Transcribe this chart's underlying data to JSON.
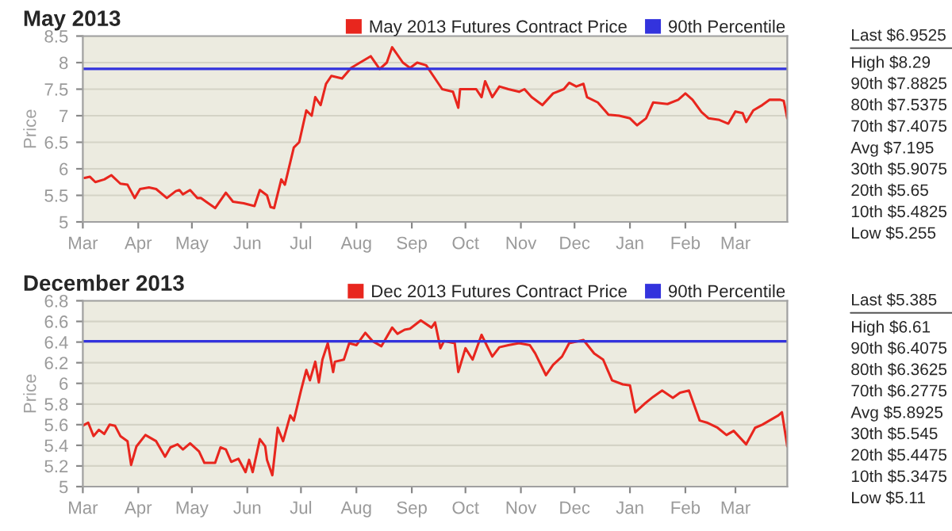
{
  "chart_data": [
    {
      "type": "line",
      "title": "May 2013",
      "ylabel": "Price",
      "grid": "y",
      "legend": "top right",
      "xlim": [
        "2012-03-01",
        "2013-03-30"
      ],
      "xticks": [
        {
          "value": "2012-03-01",
          "label": "Mar"
        },
        {
          "value": "2012-04-01",
          "label": "Apr"
        },
        {
          "value": "2012-05-01",
          "label": "May"
        },
        {
          "value": "2012-06-01",
          "label": "Jun"
        },
        {
          "value": "2012-07-01",
          "label": "Jul"
        },
        {
          "value": "2012-08-01",
          "label": "Aug"
        },
        {
          "value": "2012-09-01",
          "label": "Sep"
        },
        {
          "value": "2012-10-01",
          "label": "Oct"
        },
        {
          "value": "2012-11-01",
          "label": "Nov"
        },
        {
          "value": "2012-12-01",
          "label": "Dec"
        },
        {
          "value": "2013-01-01",
          "label": "Jan"
        },
        {
          "value": "2013-02-01",
          "label": "Feb"
        },
        {
          "value": "2013-03-01",
          "label": "Mar"
        }
      ],
      "ylim": [
        5,
        8.5
      ],
      "yticks": [
        5,
        5.5,
        6,
        6.5,
        7,
        7.5,
        8,
        8.5
      ],
      "series": [
        {
          "name": "May 2013 Futures Contract Price",
          "color": "#e8261e",
          "x": [
            "2012-03-02",
            "2012-03-05",
            "2012-03-08",
            "2012-03-13",
            "2012-03-17",
            "2012-03-22",
            "2012-03-26",
            "2012-03-30",
            "2012-04-02",
            "2012-04-07",
            "2012-04-11",
            "2012-04-17",
            "2012-04-22",
            "2012-04-24",
            "2012-04-26",
            "2012-04-30",
            "2012-05-04",
            "2012-05-06",
            "2012-05-14",
            "2012-05-20",
            "2012-05-24",
            "2012-05-30",
            "2012-06-05",
            "2012-06-08",
            "2012-06-12",
            "2012-06-14",
            "2012-06-16",
            "2012-06-20",
            "2012-06-22",
            "2012-06-27",
            "2012-06-30",
            "2012-07-04",
            "2012-07-07",
            "2012-07-09",
            "2012-07-12",
            "2012-07-15",
            "2012-07-18",
            "2012-07-24",
            "2012-07-29",
            "2012-08-03",
            "2012-08-09",
            "2012-08-14",
            "2012-08-18",
            "2012-08-21",
            "2012-08-27",
            "2012-08-31",
            "2012-09-04",
            "2012-09-09",
            "2012-09-13",
            "2012-09-18",
            "2012-09-24",
            "2012-09-27",
            "2012-09-28",
            "2012-10-07",
            "2012-10-10",
            "2012-10-12",
            "2012-10-16",
            "2012-10-20",
            "2012-10-25",
            "2012-10-31",
            "2012-11-03",
            "2012-11-07",
            "2012-11-13",
            "2012-11-19",
            "2012-11-25",
            "2012-11-28",
            "2012-12-02",
            "2012-12-06",
            "2012-12-08",
            "2012-12-14",
            "2012-12-20",
            "2012-12-26",
            "2013-01-01",
            "2013-01-05",
            "2013-01-10",
            "2013-01-14",
            "2013-01-22",
            "2013-01-28",
            "2013-02-01",
            "2013-02-05",
            "2013-02-10",
            "2013-02-14",
            "2013-02-20",
            "2013-02-25",
            "2013-03-01",
            "2013-03-05",
            "2013-03-07",
            "2013-03-11",
            "2013-03-16",
            "2013-03-20",
            "2013-03-26",
            "2013-03-28",
            "2013-03-30"
          ],
          "values": [
            5.83,
            5.85,
            5.75,
            5.8,
            5.88,
            5.72,
            5.7,
            5.45,
            5.62,
            5.65,
            5.62,
            5.45,
            5.58,
            5.6,
            5.52,
            5.6,
            5.45,
            5.45,
            5.26,
            5.55,
            5.38,
            5.35,
            5.3,
            5.6,
            5.5,
            5.28,
            5.26,
            5.8,
            5.7,
            6.4,
            6.5,
            7.1,
            7.0,
            7.35,
            7.2,
            7.6,
            7.75,
            7.7,
            7.9,
            8.0,
            8.12,
            7.88,
            8.0,
            8.29,
            8.0,
            7.9,
            8.0,
            7.95,
            7.75,
            7.5,
            7.45,
            7.15,
            7.5,
            7.5,
            7.35,
            7.65,
            7.35,
            7.55,
            7.5,
            7.45,
            7.5,
            7.35,
            7.2,
            7.42,
            7.5,
            7.62,
            7.55,
            7.6,
            7.35,
            7.25,
            7.02,
            7.0,
            6.95,
            6.82,
            6.95,
            7.25,
            7.22,
            7.3,
            7.42,
            7.3,
            7.07,
            6.95,
            6.92,
            6.85,
            7.08,
            7.05,
            6.88,
            7.1,
            7.2,
            7.3,
            7.3,
            7.28,
            6.95
          ]
        }
      ],
      "ref_lines": [
        {
          "axis": "y",
          "value": 7.8825,
          "label": "90th Percentile",
          "color": "#3333dd"
        }
      ],
      "annotations": [
        "Last $6.9525",
        "High $8.29",
        "90th $7.8825",
        "80th $7.5375",
        "70th $7.4075",
        "Avg $7.195",
        "30th $5.9075",
        "20th $5.65",
        "10th $5.4825",
        "Low $5.255"
      ]
    },
    {
      "type": "line",
      "title": "December 2013",
      "ylabel": "Price",
      "grid": "y",
      "legend": "top right",
      "xlim": [
        "2012-03-01",
        "2013-03-30"
      ],
      "xticks": [
        {
          "value": "2012-03-01",
          "label": "Mar"
        },
        {
          "value": "2012-04-01",
          "label": "Apr"
        },
        {
          "value": "2012-05-01",
          "label": "May"
        },
        {
          "value": "2012-06-01",
          "label": "Jun"
        },
        {
          "value": "2012-07-01",
          "label": "Jul"
        },
        {
          "value": "2012-08-01",
          "label": "Aug"
        },
        {
          "value": "2012-09-01",
          "label": "Sep"
        },
        {
          "value": "2012-10-01",
          "label": "Oct"
        },
        {
          "value": "2012-11-01",
          "label": "Nov"
        },
        {
          "value": "2012-12-01",
          "label": "Dec"
        },
        {
          "value": "2013-01-01",
          "label": "Jan"
        },
        {
          "value": "2013-02-01",
          "label": "Feb"
        },
        {
          "value": "2013-03-01",
          "label": "Mar"
        }
      ],
      "ylim": [
        5,
        6.8
      ],
      "yticks": [
        5,
        5.2,
        5.4,
        5.6,
        5.8,
        6,
        6.2,
        6.4,
        6.6,
        6.8
      ],
      "series": [
        {
          "name": "Dec 2013 Futures Contract Price",
          "color": "#e8261e",
          "x": [
            "2012-03-01",
            "2012-03-04",
            "2012-03-07",
            "2012-03-10",
            "2012-03-13",
            "2012-03-16",
            "2012-03-19",
            "2012-03-22",
            "2012-03-26",
            "2012-03-28",
            "2012-03-31",
            "2012-04-05",
            "2012-04-11",
            "2012-04-16",
            "2012-04-19",
            "2012-04-23",
            "2012-04-26",
            "2012-04-30",
            "2012-05-05",
            "2012-05-08",
            "2012-05-14",
            "2012-05-17",
            "2012-05-20",
            "2012-05-23",
            "2012-05-27",
            "2012-05-31",
            "2012-06-02",
            "2012-06-04",
            "2012-06-08",
            "2012-06-11",
            "2012-06-12",
            "2012-06-15",
            "2012-06-18",
            "2012-06-21",
            "2012-06-25",
            "2012-06-27",
            "2012-07-01",
            "2012-07-04",
            "2012-07-06",
            "2012-07-09",
            "2012-07-11",
            "2012-07-13",
            "2012-07-16",
            "2012-07-19",
            "2012-07-20",
            "2012-07-25",
            "2012-07-28",
            "2012-08-01",
            "2012-08-06",
            "2012-08-10",
            "2012-08-15",
            "2012-08-21",
            "2012-08-24",
            "2012-08-28",
            "2012-08-31",
            "2012-09-06",
            "2012-09-12",
            "2012-09-14",
            "2012-09-17",
            "2012-09-19",
            "2012-09-25",
            "2012-09-27",
            "2012-10-01",
            "2012-10-05",
            "2012-10-10",
            "2012-10-16",
            "2012-10-20",
            "2012-10-25",
            "2012-10-31",
            "2012-11-06",
            "2012-11-09",
            "2012-11-15",
            "2012-11-19",
            "2012-11-24",
            "2012-11-28",
            "2012-12-06",
            "2012-12-12",
            "2012-12-17",
            "2012-12-22",
            "2012-12-28",
            "2013-01-01",
            "2013-01-04",
            "2013-01-09",
            "2013-01-14",
            "2013-01-19",
            "2013-01-25",
            "2013-01-29",
            "2013-02-03",
            "2013-02-09",
            "2013-02-13",
            "2013-02-19",
            "2013-02-24",
            "2013-02-28",
            "2013-03-07",
            "2013-03-12",
            "2013-03-16",
            "2013-03-20",
            "2013-03-25",
            "2013-03-27",
            "2013-03-30"
          ],
          "values": [
            5.59,
            5.62,
            5.49,
            5.55,
            5.51,
            5.6,
            5.59,
            5.49,
            5.44,
            5.21,
            5.39,
            5.5,
            5.44,
            5.29,
            5.38,
            5.41,
            5.36,
            5.42,
            5.34,
            5.23,
            5.23,
            5.38,
            5.36,
            5.24,
            5.27,
            5.14,
            5.26,
            5.14,
            5.46,
            5.39,
            5.26,
            5.11,
            5.57,
            5.44,
            5.69,
            5.64,
            5.93,
            6.13,
            6.03,
            6.21,
            6.01,
            6.23,
            6.39,
            6.11,
            6.21,
            6.23,
            6.39,
            6.37,
            6.49,
            6.41,
            6.36,
            6.54,
            6.48,
            6.52,
            6.53,
            6.61,
            6.54,
            6.59,
            6.34,
            6.41,
            6.39,
            6.11,
            6.34,
            6.23,
            6.47,
            6.26,
            6.35,
            6.37,
            6.39,
            6.37,
            6.29,
            6.08,
            6.18,
            6.26,
            6.39,
            6.42,
            6.29,
            6.23,
            6.03,
            5.99,
            5.98,
            5.72,
            5.8,
            5.87,
            5.93,
            5.86,
            5.91,
            5.93,
            5.64,
            5.62,
            5.57,
            5.5,
            5.54,
            5.41,
            5.57,
            5.6,
            5.64,
            5.69,
            5.72,
            5.39
          ]
        }
      ],
      "ref_lines": [
        {
          "axis": "y",
          "value": 6.4075,
          "label": "90th Percentile",
          "color": "#3333dd"
        }
      ],
      "annotations": [
        "Last $5.385",
        "High $6.61",
        "90th $6.4075",
        "80th $6.3625",
        "70th $6.2775",
        "Avg $5.8925",
        "30th $5.545",
        "20th $5.4475",
        "10th $5.3475",
        "Low $5.11"
      ]
    }
  ]
}
